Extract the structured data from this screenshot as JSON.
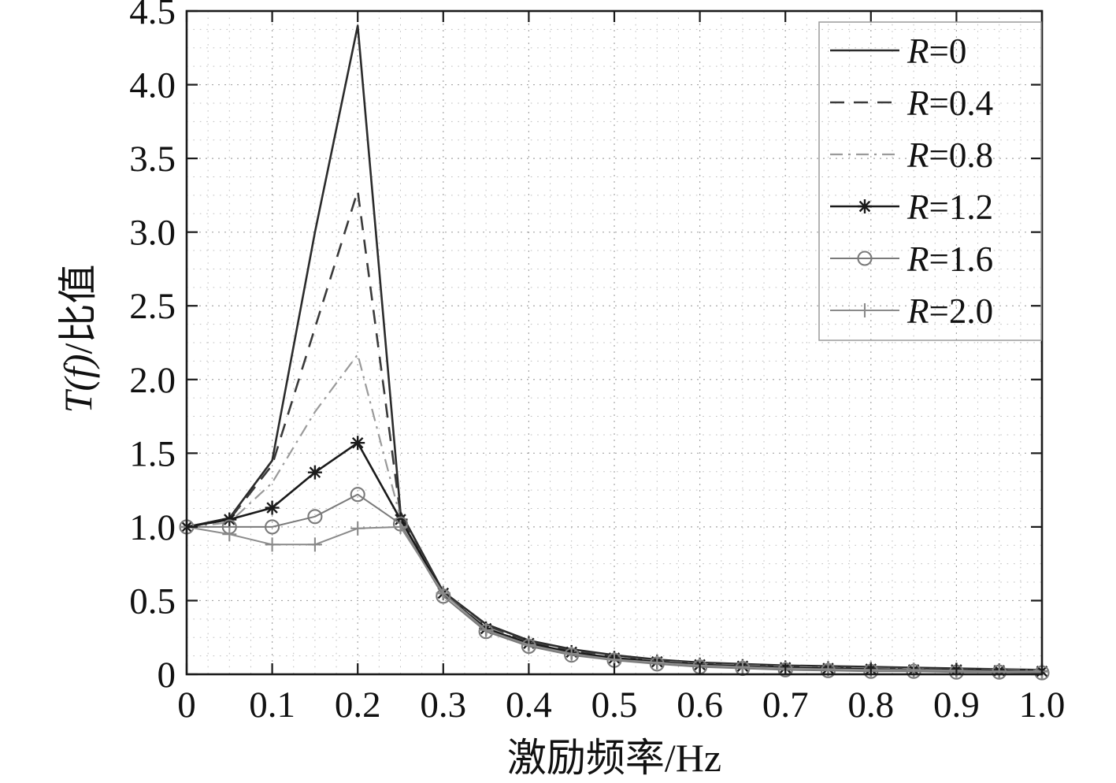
{
  "chart_data": {
    "type": "line",
    "title": "",
    "xlabel": "激励频率/Hz",
    "ylabel_prefix": "T(f)",
    "ylabel_suffix": "/比值",
    "xlim": [
      0,
      1.0
    ],
    "ylim": [
      0,
      4.5
    ],
    "x_ticks": [
      0,
      0.1,
      0.2,
      0.3,
      0.4,
      0.5,
      0.6,
      0.7,
      0.8,
      0.9,
      1.0
    ],
    "x_tick_labels": [
      "0",
      "0.1",
      "0.2",
      "0.3",
      "0.4",
      "0.5",
      "0.6",
      "0.7",
      "0.8",
      "0.9",
      "1.0"
    ],
    "y_ticks": [
      0,
      0.5,
      1.0,
      1.5,
      2.0,
      2.5,
      3.0,
      3.5,
      4.0,
      4.5
    ],
    "y_tick_labels": [
      "0",
      "0.5",
      "1.0",
      "1.5",
      "2.0",
      "2.5",
      "3.0",
      "3.5",
      "4.0",
      "4.5"
    ],
    "grid": "dotted-minor-and-major",
    "legend_position": "top-right",
    "colors": {
      "grid_minor": "#bdbdbd",
      "grid_major": "#a6a6a6",
      "axis": "#1a1a1a",
      "legend_border": "#9a9a9a",
      "text": "#111111"
    },
    "x": [
      0,
      0.05,
      0.1,
      0.15,
      0.2,
      0.25,
      0.3,
      0.35,
      0.4,
      0.45,
      0.5,
      0.55,
      0.6,
      0.65,
      0.7,
      0.75,
      0.8,
      0.85,
      0.9,
      0.95,
      1.0
    ],
    "series": [
      {
        "name": "R=0",
        "style": "solid",
        "marker": "none",
        "color": "#2b2b2b",
        "width": 2.6,
        "values": [
          1.0,
          1.06,
          1.45,
          3.0,
          4.4,
          1.1,
          0.56,
          0.34,
          0.23,
          0.17,
          0.13,
          0.1,
          0.08,
          0.07,
          0.06,
          0.055,
          0.05,
          0.045,
          0.04,
          0.035,
          0.03
        ]
      },
      {
        "name": "R=0.4",
        "style": "dashed",
        "marker": "none",
        "color": "#3a3a3a",
        "width": 2.6,
        "values": [
          1.0,
          1.05,
          1.42,
          2.35,
          3.28,
          1.08,
          0.55,
          0.33,
          0.22,
          0.16,
          0.12,
          0.095,
          0.075,
          0.065,
          0.055,
          0.05,
          0.045,
          0.04,
          0.035,
          0.03,
          0.03
        ]
      },
      {
        "name": "R=0.8",
        "style": "dashdot",
        "marker": "none",
        "color": "#9a9a9a",
        "width": 2.2,
        "values": [
          1.0,
          1.03,
          1.3,
          1.78,
          2.17,
          1.06,
          0.55,
          0.32,
          0.21,
          0.15,
          0.115,
          0.09,
          0.07,
          0.06,
          0.05,
          0.045,
          0.04,
          0.035,
          0.03,
          0.03,
          0.025
        ]
      },
      {
        "name": "R=1.2",
        "style": "solid",
        "marker": "asterisk",
        "color": "#1a1a1a",
        "width": 2.6,
        "values": [
          1.0,
          1.05,
          1.13,
          1.37,
          1.57,
          1.05,
          0.55,
          0.31,
          0.21,
          0.15,
          0.11,
          0.085,
          0.065,
          0.055,
          0.045,
          0.04,
          0.035,
          0.03,
          0.03,
          0.025,
          0.02
        ]
      },
      {
        "name": "R=1.6",
        "style": "solid",
        "marker": "circle",
        "color": "#7a7a7a",
        "width": 2.0,
        "values": [
          1.0,
          1.0,
          1.0,
          1.07,
          1.22,
          1.02,
          0.53,
          0.29,
          0.19,
          0.13,
          0.095,
          0.07,
          0.05,
          0.04,
          0.03,
          0.025,
          0.02,
          0.02,
          0.015,
          0.015,
          0.01
        ]
      },
      {
        "name": "R=2.0",
        "style": "solid",
        "marker": "plus",
        "color": "#8a8a8a",
        "width": 2.0,
        "values": [
          1.0,
          0.95,
          0.88,
          0.88,
          0.99,
          1.0,
          0.55,
          0.3,
          0.2,
          0.14,
          0.1,
          0.08,
          0.06,
          0.05,
          0.04,
          0.035,
          0.03,
          0.03,
          0.025,
          0.02,
          0.02
        ]
      }
    ]
  }
}
